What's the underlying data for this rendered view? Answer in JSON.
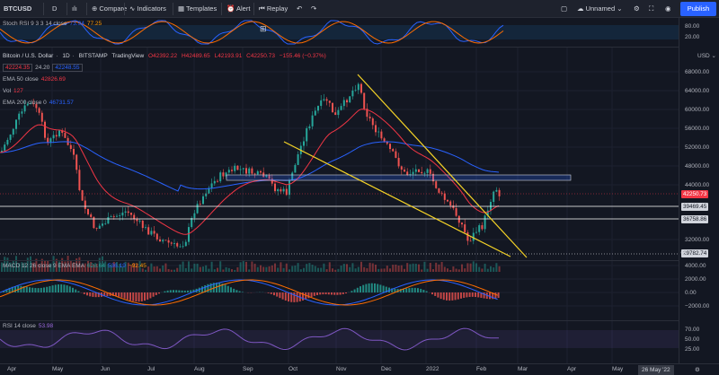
{
  "toolbar": {
    "symbol": "BTCUSD",
    "interval": "D",
    "compare": "Compare",
    "indicators": "Indicators",
    "templates": "Templates",
    "alert": "Alert",
    "replay": "Replay",
    "layout_name": "Unnamed",
    "publish": "Publish"
  },
  "stoch_rsi": {
    "label": "Stoch RSI 9 3 3 14 close",
    "k": "73.94",
    "d": "77.25",
    "ticks": [
      "80.00",
      "20.00"
    ]
  },
  "main": {
    "title": "Bitcoin / U.S. Dollar",
    "interval": "1D",
    "exchange": "BITSTAMP",
    "source": "TradingView",
    "open": "O42392.22",
    "high": "H42489.65",
    "low": "L42193.91",
    "close": "C42250.73",
    "change": "−155.46 (−0.37%)",
    "bid": "42224.35",
    "spread": "24.20",
    "ask": "42248.55",
    "currency": "USD",
    "ema50_label": "EMA 50 close",
    "ema50_value": "42826.69",
    "vol_label": "Vol",
    "vol_value": "127",
    "ema200_label": "EMA 200 close 0",
    "ema200_value": "46731.57",
    "price_ticks": [
      "68000.00",
      "64000.00",
      "60000.00",
      "56000.00",
      "52000.00",
      "48000.00",
      "44000.00",
      "32000.00",
      "29000.00"
    ],
    "price_tags": {
      "last": "42250.73",
      "level1": "39469.45",
      "level2": "36758.86",
      "level3": "29782.74"
    }
  },
  "macd": {
    "label": "MACD 12 26 close 9 EMA EMA",
    "hist": "628.64",
    "macd": "536.19",
    "signal": "−92.45",
    "ticks": [
      "4000.00",
      "2000.00",
      "0.00",
      "−2000.00"
    ]
  },
  "rsi": {
    "label": "RSI 14 close",
    "value": "53.98",
    "ticks": [
      "70.00",
      "50.00",
      "25.00"
    ]
  },
  "time_axis": {
    "labels": [
      "Apr",
      "May",
      "Jun",
      "Jul",
      "Aug",
      "Sep",
      "Oct",
      "Nov",
      "Dec",
      "2022",
      "Feb",
      "Mar",
      "Apr",
      "May"
    ],
    "cursor_date": "26 May '22"
  },
  "colors": {
    "up": "#26a69a",
    "down": "#ef5350",
    "ema50": "#f23645",
    "ema200": "#2962ff",
    "trendline": "#f5d327",
    "macd": "#2962ff",
    "signal": "#ff6d00",
    "rsi": "#7e57c2"
  }
}
